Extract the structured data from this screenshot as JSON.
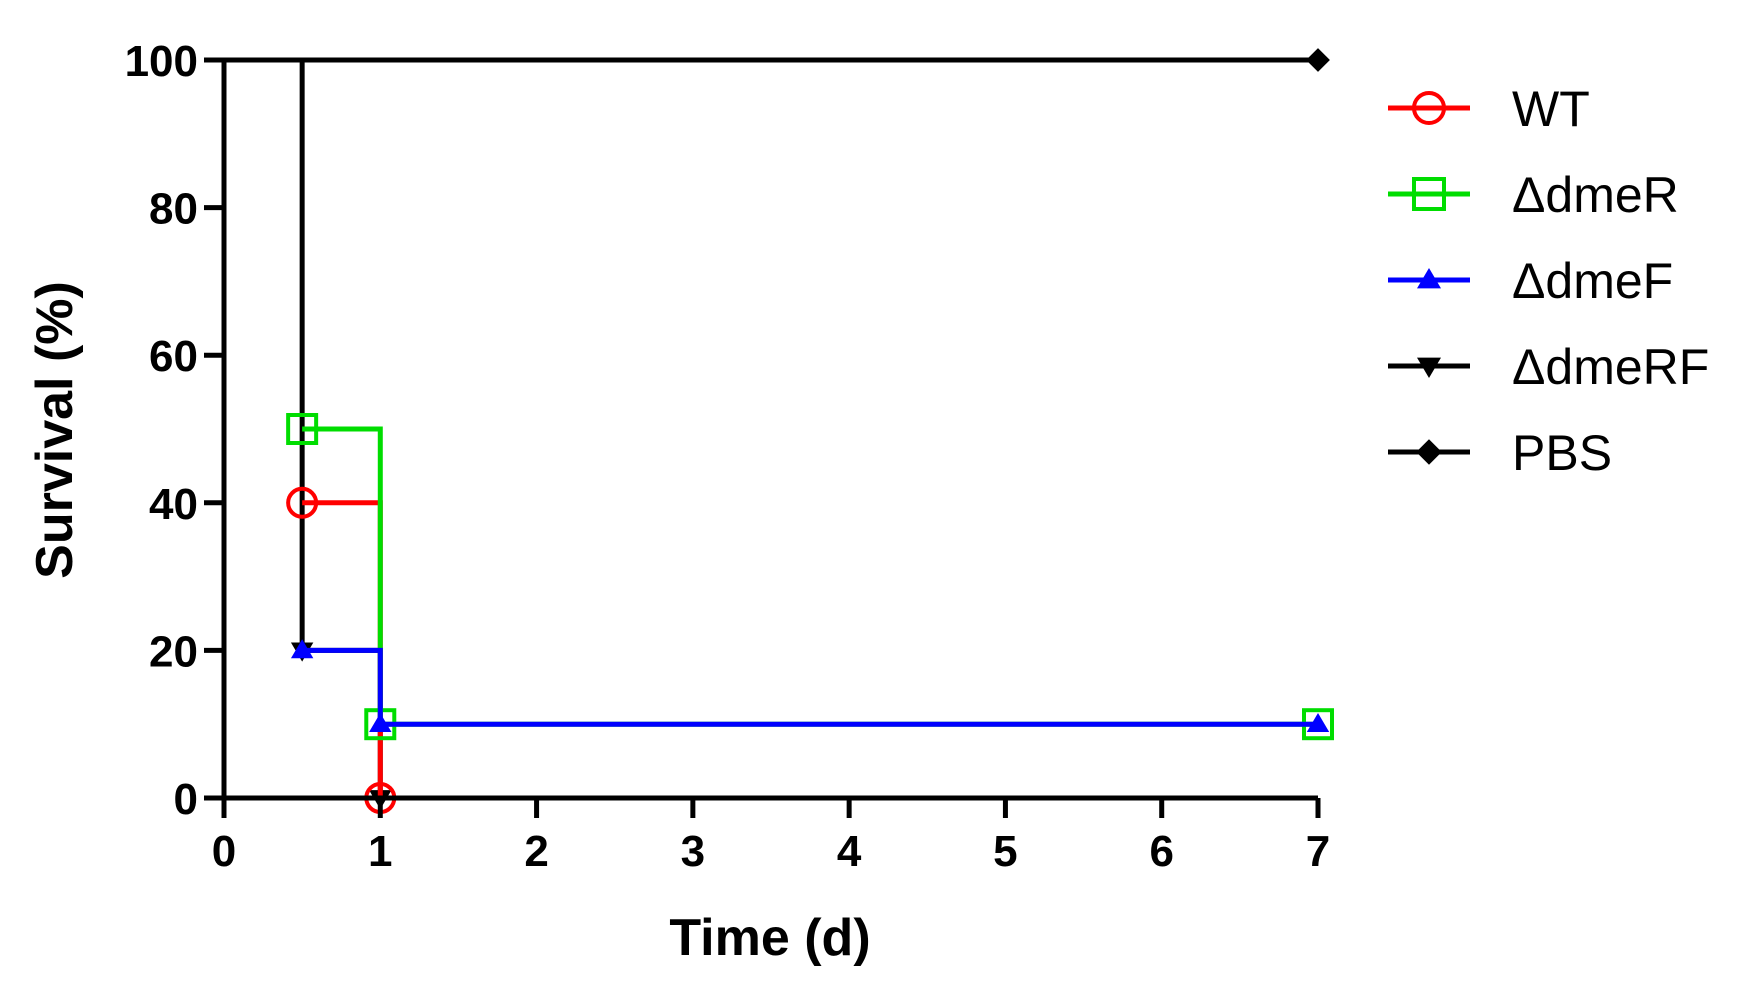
{
  "chart_data": {
    "type": "line",
    "title": "",
    "xlabel": "Time (d)",
    "ylabel": "Survival (%)",
    "xlim": [
      0,
      7
    ],
    "ylim": [
      0,
      100
    ],
    "x_ticks": [
      "0",
      "1",
      "2",
      "3",
      "4",
      "5",
      "6",
      "7"
    ],
    "y_ticks": [
      "0",
      "20",
      "40",
      "60",
      "80",
      "100"
    ],
    "grid": false,
    "legend_position": "right",
    "series": [
      {
        "name": "PBS",
        "color": "#000000",
        "marker": "diamond",
        "steps": [
          [
            0,
            100
          ],
          [
            7,
            100
          ]
        ],
        "points": [
          [
            7,
            100
          ]
        ]
      },
      {
        "name": "ΔdmeRF",
        "color": "#000000",
        "marker": "triangle-down",
        "steps": [
          [
            0,
            100
          ],
          [
            0.5,
            20
          ],
          [
            1,
            0
          ]
        ],
        "points": [
          [
            0.5,
            20
          ],
          [
            1,
            0
          ]
        ]
      },
      {
        "name": "WT",
        "color": "#ff0000",
        "marker": "circle",
        "steps": [
          [
            0.5,
            40
          ],
          [
            1,
            0
          ]
        ],
        "points": [
          [
            0.5,
            40
          ],
          [
            1,
            0
          ]
        ]
      },
      {
        "name": "ΔdmeR",
        "color": "#00dd00",
        "marker": "square",
        "steps": [
          [
            0.5,
            50
          ],
          [
            1,
            10
          ],
          [
            7,
            10
          ]
        ],
        "points": [
          [
            0.5,
            50
          ],
          [
            1,
            10
          ],
          [
            7,
            10
          ]
        ]
      },
      {
        "name": "ΔdmeF",
        "color": "#0000ff",
        "marker": "triangle-up",
        "steps": [
          [
            0.5,
            20
          ],
          [
            1,
            10
          ],
          [
            7,
            10
          ]
        ],
        "points": [
          [
            0.5,
            20
          ],
          [
            1,
            10
          ],
          [
            7,
            10
          ]
        ]
      }
    ],
    "legend_order": [
      "WT",
      "ΔdmeR",
      "ΔdmeF",
      "ΔdmeRF",
      "PBS"
    ]
  }
}
